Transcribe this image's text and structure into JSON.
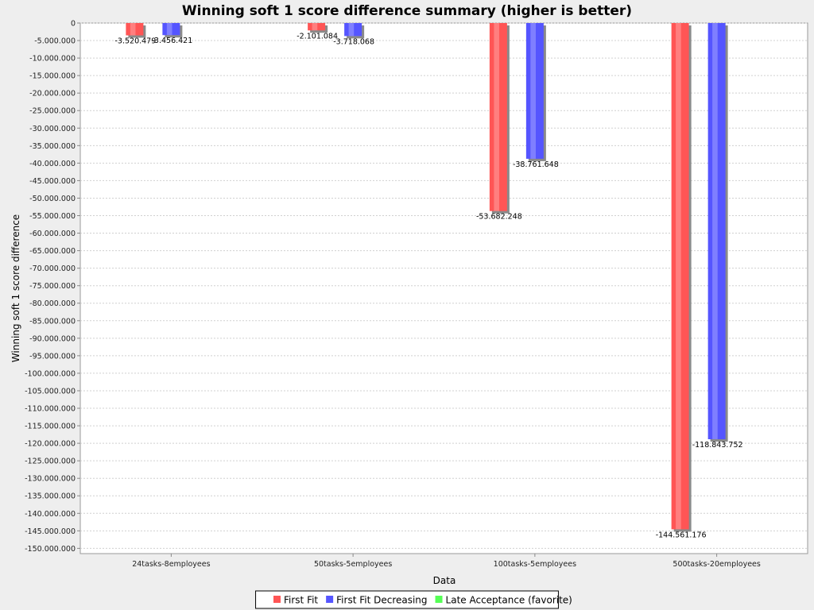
{
  "chart_data": {
    "type": "bar",
    "title": "Winning soft 1 score difference summary (higher is better)",
    "xlabel": "Data",
    "ylabel": "Winning soft 1 score difference",
    "categories": [
      "24tasks-8employees",
      "50tasks-5employees",
      "100tasks-5employees",
      "500tasks-20employees"
    ],
    "series": [
      {
        "name": "First Fit",
        "color": "#ff5555",
        "values": [
          -3520479,
          -2101084,
          -53682248,
          -144561176
        ],
        "value_labels": [
          "-3.520.479",
          "-2.101.084",
          "-53.682.248",
          "-144.561.176"
        ]
      },
      {
        "name": "First Fit Decreasing",
        "color": "#5555ff",
        "values": [
          -3456421,
          -3718068,
          -38761648,
          -118843752
        ],
        "value_labels": [
          "-3.456.421",
          "-3.718.068",
          "-38.761.648",
          "-118.843.752"
        ]
      },
      {
        "name": "Late Acceptance (favorite)",
        "color": "#55ff55",
        "values": [
          0,
          0,
          0,
          0
        ],
        "value_labels": [
          "",
          "",
          "",
          ""
        ]
      }
    ],
    "ylim": [
      -151500000,
      0
    ],
    "y_ticks": [
      0,
      -5000000,
      -10000000,
      -15000000,
      -20000000,
      -25000000,
      -30000000,
      -35000000,
      -40000000,
      -45000000,
      -50000000,
      -55000000,
      -60000000,
      -65000000,
      -70000000,
      -75000000,
      -80000000,
      -85000000,
      -90000000,
      -95000000,
      -100000000,
      -105000000,
      -110000000,
      -115000000,
      -120000000,
      -125000000,
      -130000000,
      -135000000,
      -140000000,
      -145000000,
      -150000000
    ],
    "y_tick_labels": [
      "0",
      "-5.000.000",
      "-10.000.000",
      "-15.000.000",
      "-20.000.000",
      "-25.000.000",
      "-30.000.000",
      "-35.000.000",
      "-40.000.000",
      "-45.000.000",
      "-50.000.000",
      "-55.000.000",
      "-60.000.000",
      "-65.000.000",
      "-70.000.000",
      "-75.000.000",
      "-80.000.000",
      "-85.000.000",
      "-90.000.000",
      "-95.000.000",
      "-100.000.000",
      "-105.000.000",
      "-110.000.000",
      "-115.000.000",
      "-120.000.000",
      "-125.000.000",
      "-130.000.000",
      "-135.000.000",
      "-140.000.000",
      "-145.000.000",
      "-150.000.000"
    ],
    "grid": true,
    "legend_position": "bottom"
  }
}
